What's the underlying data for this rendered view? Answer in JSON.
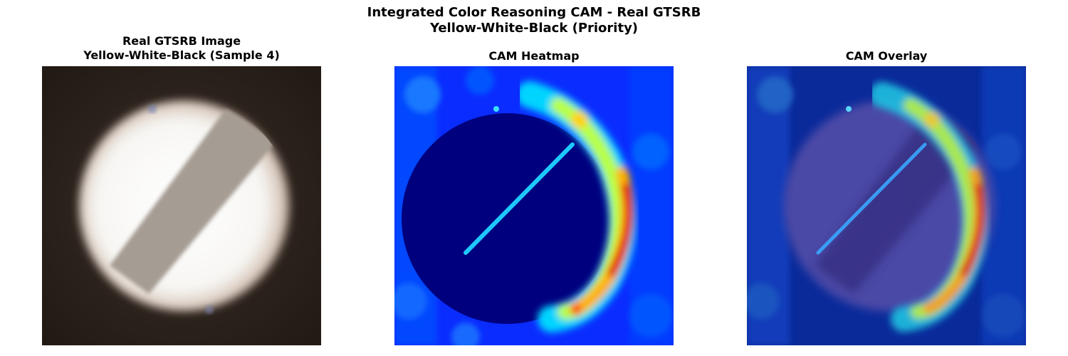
{
  "figure": {
    "title_line1": "Integrated Color Reasoning CAM - Real GTSRB",
    "title_line2": "Yellow-White-Black (Priority)"
  },
  "panels": [
    {
      "title_line1": "Real GTSRB Image",
      "title_line2": "Yellow-White-Black (Sample 4)"
    },
    {
      "title_line1": "CAM Heatmap",
      "title_line2": ""
    },
    {
      "title_line1": "CAM Overlay",
      "title_line2": ""
    }
  ],
  "colors": {
    "image_background": "#2b211c",
    "sign_white": "#fbfbf9",
    "sign_stripe": "#a39a92",
    "heatmap_low": "#00007f",
    "heatmap_mid": "#0a2cff",
    "heatmap_high": "#e10000"
  }
}
